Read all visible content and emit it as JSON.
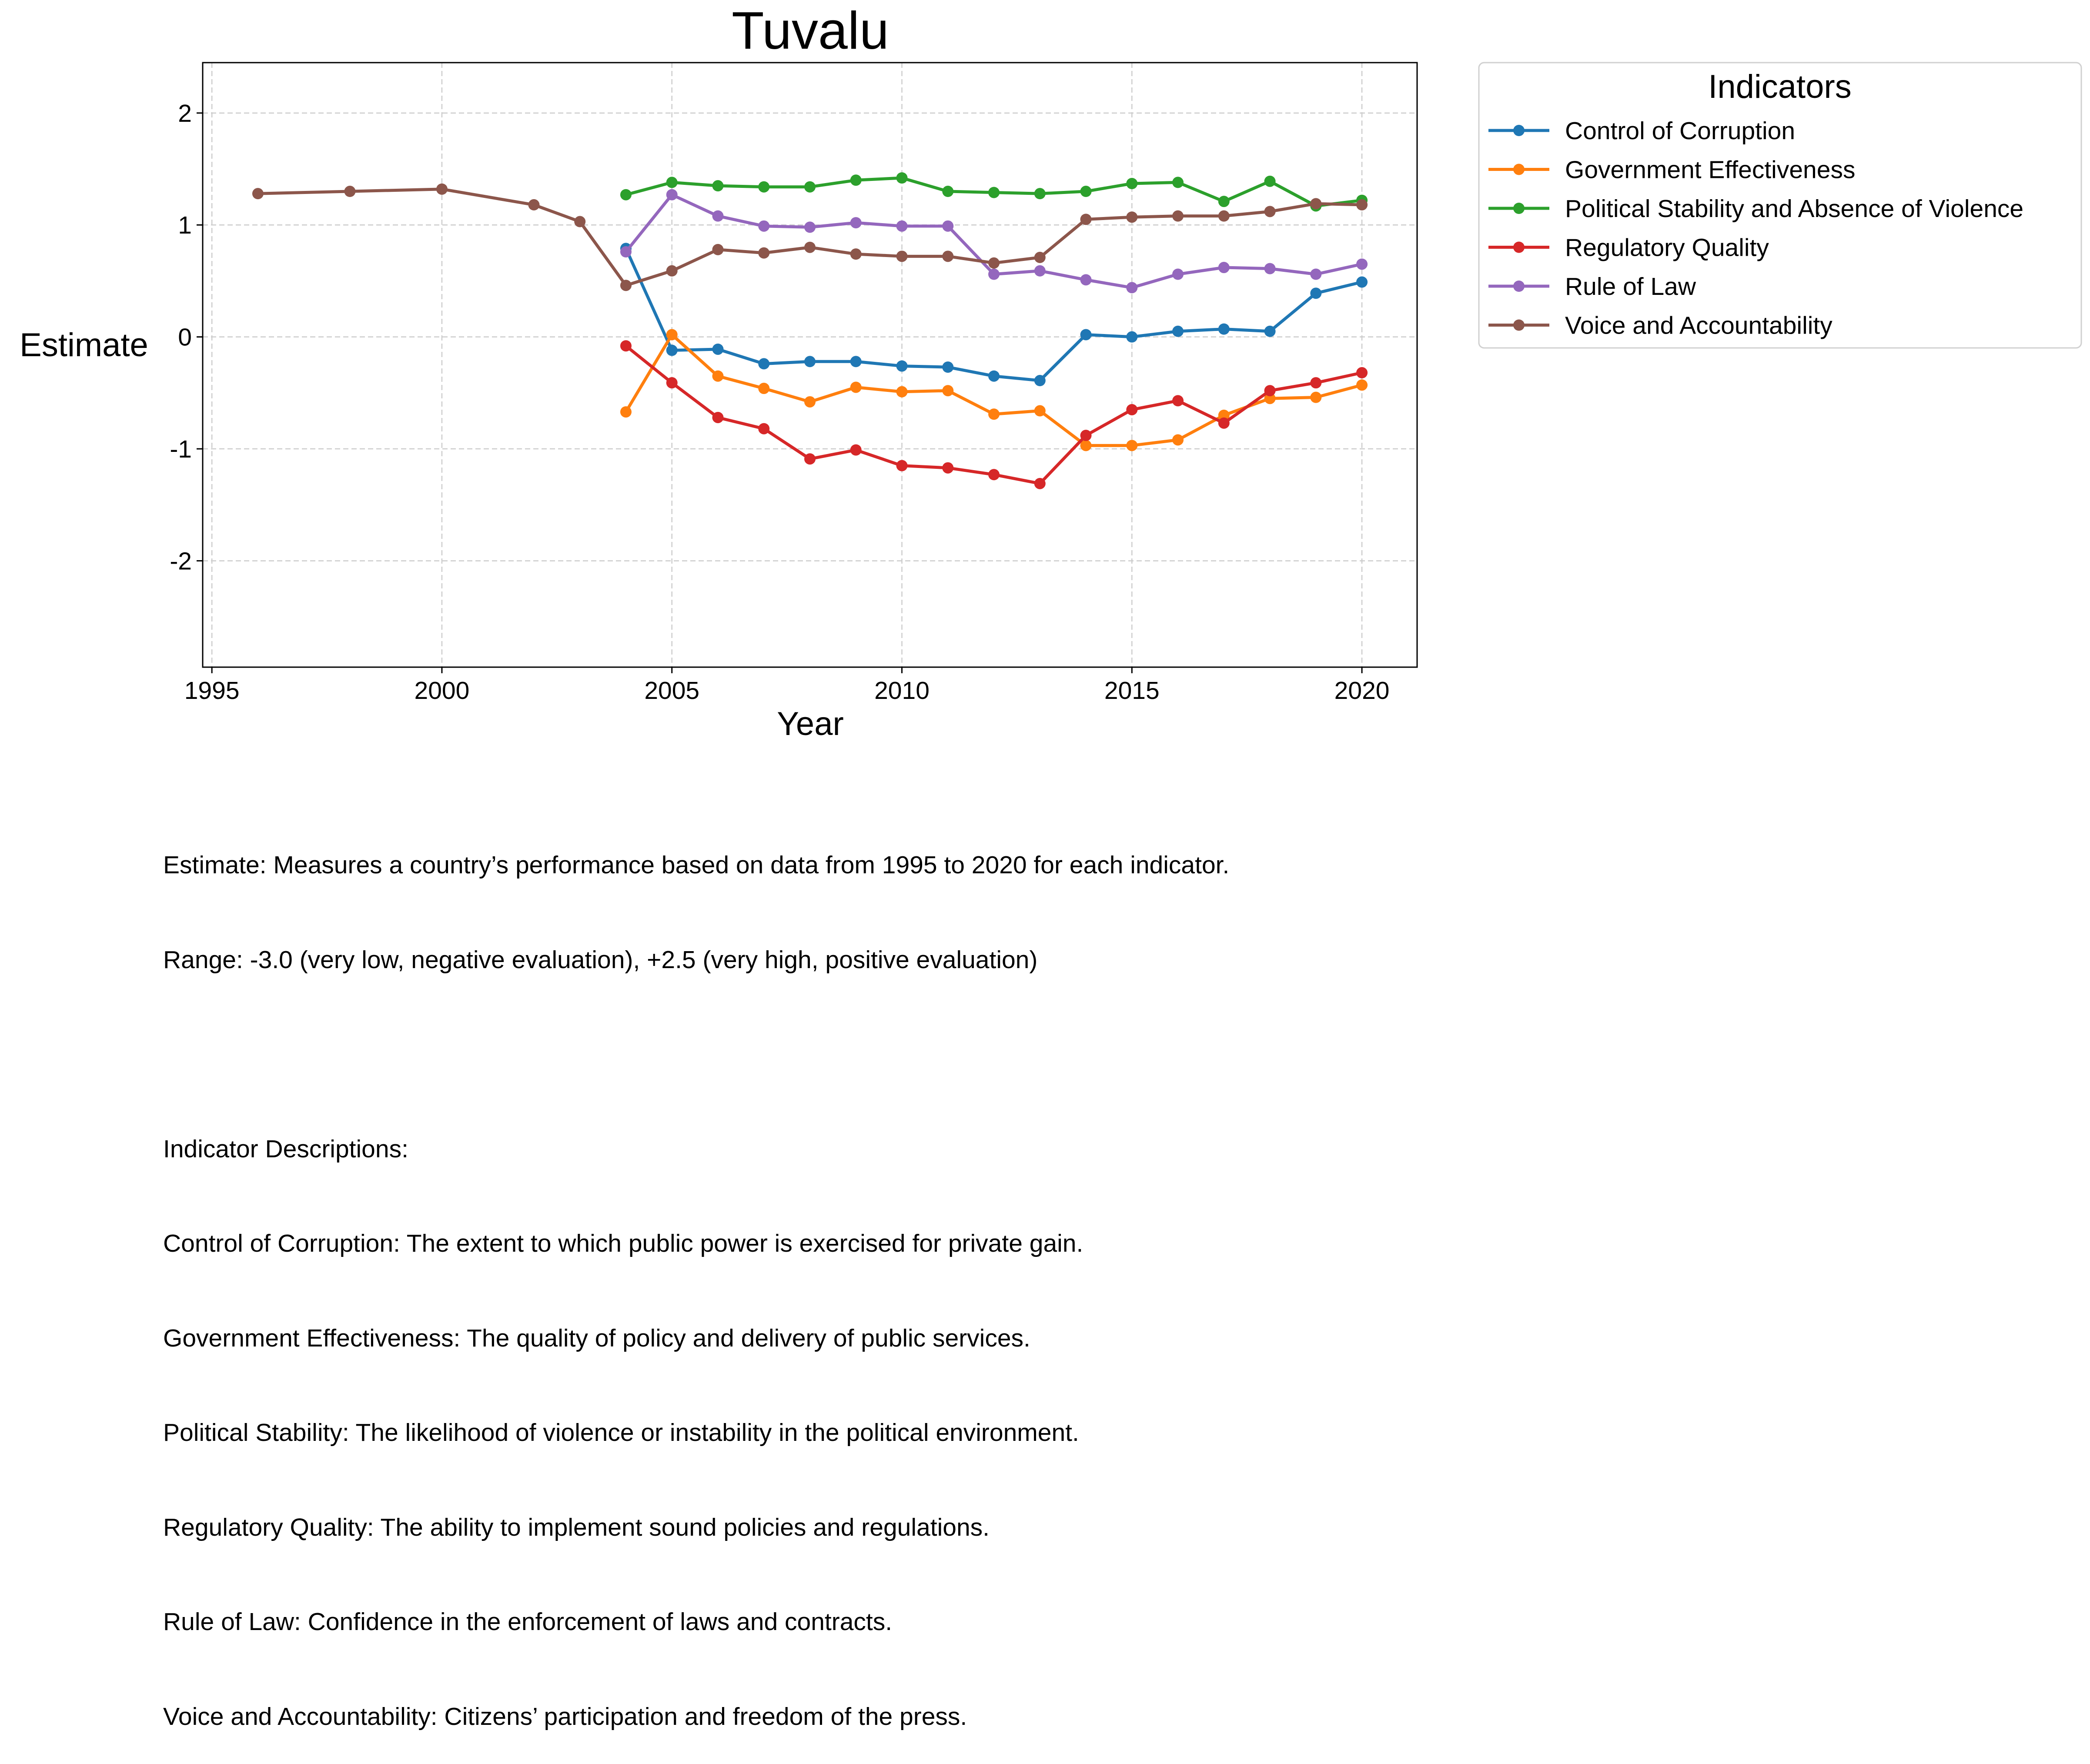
{
  "chart_data": {
    "type": "line",
    "title": "Tuvalu",
    "xlabel": "Year",
    "ylabel": "Estimate",
    "xlim": [
      1994.8,
      2021.2
    ],
    "ylim": [
      -2.95,
      2.45
    ],
    "xticks": [
      1995,
      2000,
      2005,
      2010,
      2015,
      2020
    ],
    "yticks": [
      -2,
      -1,
      0,
      1,
      2
    ],
    "grid": true,
    "legend": {
      "title": "Indicators",
      "placement": "outside-top-right"
    },
    "series": [
      {
        "name": "Control of Corruption",
        "color": "#1f77b4",
        "points": [
          [
            2004,
            0.79
          ],
          [
            2005,
            -0.12
          ],
          [
            2006,
            -0.11
          ],
          [
            2007,
            -0.24
          ],
          [
            2008,
            -0.22
          ],
          [
            2009,
            -0.22
          ],
          [
            2010,
            -0.26
          ],
          [
            2011,
            -0.27
          ],
          [
            2012,
            -0.35
          ],
          [
            2013,
            -0.39
          ],
          [
            2014,
            0.02
          ],
          [
            2015,
            0.0
          ],
          [
            2016,
            0.05
          ],
          [
            2017,
            0.07
          ],
          [
            2018,
            0.05
          ],
          [
            2019,
            0.39
          ],
          [
            2020,
            0.49
          ]
        ]
      },
      {
        "name": "Government Effectiveness",
        "color": "#ff7f0e",
        "points": [
          [
            2004,
            -0.67
          ],
          [
            2005,
            0.02
          ],
          [
            2006,
            -0.35
          ],
          [
            2007,
            -0.46
          ],
          [
            2008,
            -0.58
          ],
          [
            2009,
            -0.45
          ],
          [
            2010,
            -0.49
          ],
          [
            2011,
            -0.48
          ],
          [
            2012,
            -0.69
          ],
          [
            2013,
            -0.66
          ],
          [
            2014,
            -0.97
          ],
          [
            2015,
            -0.97
          ],
          [
            2016,
            -0.92
          ],
          [
            2017,
            -0.7
          ],
          [
            2018,
            -0.55
          ],
          [
            2019,
            -0.54
          ],
          [
            2020,
            -0.43
          ]
        ]
      },
      {
        "name": "Political Stability and Absence of Violence",
        "color": "#2ca02c",
        "points": [
          [
            2004,
            1.27
          ],
          [
            2005,
            1.38
          ],
          [
            2006,
            1.35
          ],
          [
            2007,
            1.34
          ],
          [
            2008,
            1.34
          ],
          [
            2009,
            1.4
          ],
          [
            2010,
            1.42
          ],
          [
            2011,
            1.3
          ],
          [
            2012,
            1.29
          ],
          [
            2013,
            1.28
          ],
          [
            2014,
            1.3
          ],
          [
            2015,
            1.37
          ],
          [
            2016,
            1.38
          ],
          [
            2017,
            1.21
          ],
          [
            2018,
            1.39
          ],
          [
            2019,
            1.17
          ],
          [
            2020,
            1.22
          ]
        ]
      },
      {
        "name": "Regulatory Quality",
        "color": "#d62728",
        "points": [
          [
            2004,
            -0.08
          ],
          [
            2005,
            -0.41
          ],
          [
            2006,
            -0.72
          ],
          [
            2007,
            -0.82
          ],
          [
            2008,
            -1.09
          ],
          [
            2009,
            -1.01
          ],
          [
            2010,
            -1.15
          ],
          [
            2011,
            -1.17
          ],
          [
            2012,
            -1.23
          ],
          [
            2013,
            -1.31
          ],
          [
            2014,
            -0.88
          ],
          [
            2015,
            -0.65
          ],
          [
            2016,
            -0.57
          ],
          [
            2017,
            -0.77
          ],
          [
            2018,
            -0.48
          ],
          [
            2019,
            -0.41
          ],
          [
            2020,
            -0.32
          ]
        ]
      },
      {
        "name": "Rule of Law",
        "color": "#9467bd",
        "points": [
          [
            2004,
            0.76
          ],
          [
            2005,
            1.27
          ],
          [
            2006,
            1.08
          ],
          [
            2007,
            0.99
          ],
          [
            2008,
            0.98
          ],
          [
            2009,
            1.02
          ],
          [
            2010,
            0.99
          ],
          [
            2011,
            0.99
          ],
          [
            2012,
            0.56
          ],
          [
            2013,
            0.59
          ],
          [
            2014,
            0.51
          ],
          [
            2015,
            0.44
          ],
          [
            2016,
            0.56
          ],
          [
            2017,
            0.62
          ],
          [
            2018,
            0.61
          ],
          [
            2019,
            0.56
          ],
          [
            2020,
            0.65
          ]
        ]
      },
      {
        "name": "Voice and Accountability",
        "color": "#8c564b",
        "points": [
          [
            1996,
            1.28
          ],
          [
            1998,
            1.3
          ],
          [
            2000,
            1.32
          ],
          [
            2002,
            1.18
          ],
          [
            2003,
            1.03
          ],
          [
            2004,
            0.46
          ],
          [
            2005,
            0.59
          ],
          [
            2006,
            0.78
          ],
          [
            2007,
            0.75
          ],
          [
            2008,
            0.8
          ],
          [
            2009,
            0.74
          ],
          [
            2010,
            0.72
          ],
          [
            2011,
            0.72
          ],
          [
            2012,
            0.66
          ],
          [
            2013,
            0.71
          ],
          [
            2014,
            1.05
          ],
          [
            2015,
            1.07
          ],
          [
            2016,
            1.08
          ],
          [
            2017,
            1.08
          ],
          [
            2018,
            1.12
          ],
          [
            2019,
            1.19
          ],
          [
            2020,
            1.18
          ]
        ]
      }
    ]
  },
  "notes": [
    "Estimate: Measures a country’s performance based on data from 1995 to 2020 for each indicator.",
    "Range: -3.0 (very low, negative evaluation), +2.5 (very high, positive evaluation)",
    "",
    "Indicator Descriptions:",
    "Control of Corruption: The extent to which public power is exercised for private gain.",
    "Government Effectiveness: The quality of policy and delivery of public services.",
    "Political Stability: The likelihood of violence or instability in the political environment.",
    "Regulatory Quality: The ability to implement sound policies and regulations.",
    "Rule of Law: Confidence in the enforcement of laws and contracts.",
    "Voice and Accountability: Citizens’ participation and freedom of the press."
  ]
}
